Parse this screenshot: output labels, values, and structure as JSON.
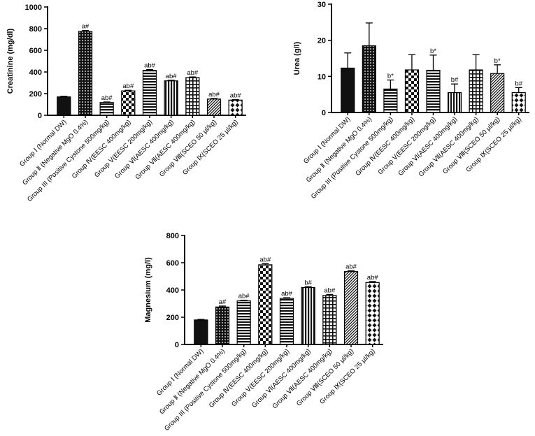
{
  "figure": {
    "charts": [
      "creatinine",
      "urea",
      "magnesium"
    ]
  },
  "chart_data": [
    {
      "id": "creatinine",
      "type": "bar",
      "title": "",
      "xlabel": "",
      "ylabel": "Creatinine (mg/dl)",
      "ylim": [
        0,
        1000
      ],
      "yticks": [
        0,
        200,
        400,
        600,
        800,
        1000
      ],
      "grid": false,
      "categories": [
        "Group Ⅰ (Normal DW)",
        "Group Ⅱ (Negative MgO 0.4%)",
        "Group III (Positive Cystone 500mg/kg)",
        "Group Ⅳ(EESC 400mg/kg)",
        "Group Ⅴ(EESC 200mg/kg)",
        "Group Ⅵ(AESC 400mg/kg)",
        "Group Ⅶ(AESC 400mg/kg)",
        "Group Ⅷ(SCEO 50 µl/kg)",
        "Group Ⅸ(SCEO 25 µl/kg)"
      ],
      "values": [
        170,
        775,
        118,
        225,
        415,
        318,
        348,
        150,
        140
      ],
      "errors": [
        6,
        8,
        5,
        6,
        7,
        6,
        6,
        5,
        5
      ],
      "labels": [
        "",
        "a#",
        "ab#",
        "ab#",
        "ab#",
        "ab#",
        "ab#",
        "ab#",
        "ab#"
      ],
      "patterns": [
        "solid",
        "dots",
        "hlines",
        "checker",
        "hlines",
        "vlines",
        "grid",
        "diag",
        "diamond"
      ]
    },
    {
      "id": "urea",
      "type": "bar",
      "title": "",
      "xlabel": "",
      "ylabel": "Urea (g/l)",
      "ylim": [
        0,
        30
      ],
      "yticks": [
        0,
        10,
        20,
        30
      ],
      "grid": false,
      "categories": [
        "Group Ⅰ (Normal DW)",
        "Group Ⅱ (Negative MgO 0.4%)",
        "Group III (Positive Cystone 500mg/kg)",
        "Group Ⅳ(EESC 400mg/kg)",
        "Group Ⅴ(EESC 200mg/kg)",
        "Group Ⅵ(AESC 400mg/kg)",
        "Group Ⅶ(AESC 400mg/kg)",
        "Group Ⅷ(SCEO 50 µl/kg)",
        "Group Ⅸ(SCEO 25 µl/kg)"
      ],
      "values": [
        12.3,
        18.5,
        6.5,
        11.8,
        11.7,
        5.5,
        11.8,
        10.8,
        5.5
      ],
      "errors": [
        4.2,
        6.3,
        2.5,
        4.2,
        4.2,
        2.4,
        4.2,
        2.4,
        1.4
      ],
      "labels": [
        "",
        "",
        "b*",
        "",
        "b*",
        "b#",
        "",
        "b*",
        "b#"
      ],
      "patterns": [
        "solid",
        "dots",
        "hlines",
        "checker",
        "hlines",
        "vlines",
        "grid",
        "diag",
        "diamond"
      ]
    },
    {
      "id": "magnesium",
      "type": "bar",
      "title": "",
      "xlabel": "",
      "ylabel": "Magnesium (mg/l)",
      "ylim": [
        0,
        800
      ],
      "yticks": [
        0,
        200,
        400,
        600,
        800
      ],
      "grid": false,
      "categories": [
        "Group Ⅰ (Normal DW)",
        "Group Ⅱ (Negative MgO 0.4%)",
        "Group III (Positive Cystone 500mg/kg)",
        "Group Ⅳ(EESC 400mg/kg)",
        "Group Ⅴ(EESC 200mg/kg)",
        "Group Ⅵ(AESC 400mg/kg)",
        "Group Ⅶ(AESC 400mg/kg)",
        "Group Ⅷ(SCEO 50 µl/kg)",
        "Group Ⅸ(SCEO 25 µl/kg)"
      ],
      "values": [
        180,
        275,
        320,
        585,
        338,
        418,
        360,
        535,
        455
      ],
      "errors": [
        4,
        7,
        5,
        8,
        5,
        6,
        7,
        6,
        7
      ],
      "labels": [
        "",
        "a#",
        "ab#",
        "ab#",
        "ab#",
        "b#",
        "ab#",
        "ab#",
        "ab#"
      ],
      "patterns": [
        "solid",
        "dots",
        "hlines",
        "checker",
        "hlines",
        "vlines",
        "grid",
        "diag",
        "diamond"
      ]
    }
  ]
}
